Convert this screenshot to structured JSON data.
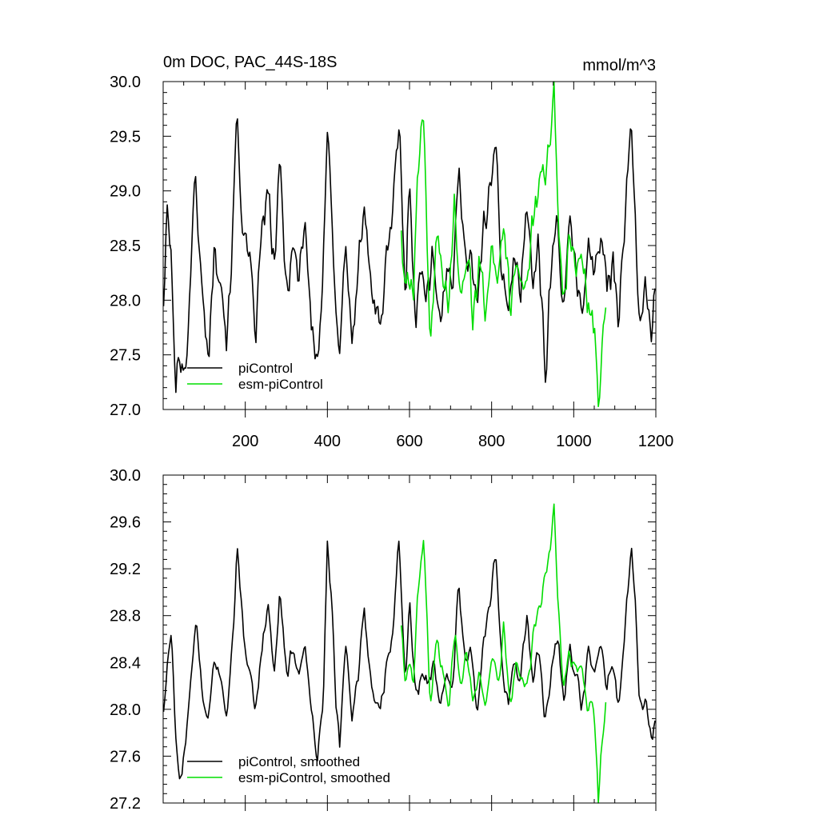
{
  "chart_data": [
    {
      "type": "line",
      "title": "0m DOC, PAC_44S-18S",
      "units": "mmol/m^3",
      "xlabel": "",
      "ylabel": "",
      "xlim": [
        0,
        1200
      ],
      "ylim": [
        27.0,
        30.0
      ],
      "x_ticks": [
        200,
        400,
        600,
        800,
        1000,
        1200
      ],
      "y_ticks": [
        27.0,
        27.5,
        28.0,
        28.5,
        29.0,
        29.5,
        30.0
      ],
      "y_tick_labels": [
        "27.0",
        "27.5",
        "28.0",
        "28.5",
        "29.0",
        "29.5",
        "30.0"
      ],
      "legend_position": "bottom-left",
      "series": [
        {
          "name": "piControl",
          "color": "#000000",
          "x_start": 1,
          "x_end": 1200,
          "points": [
            [
              1,
              28.0
            ],
            [
              10,
              28.8
            ],
            [
              20,
              28.4
            ],
            [
              30,
              27.1
            ],
            [
              40,
              27.6
            ],
            [
              55,
              27.3
            ],
            [
              70,
              28.6
            ],
            [
              80,
              29.1
            ],
            [
              95,
              28.0
            ],
            [
              110,
              27.5
            ],
            [
              125,
              28.5
            ],
            [
              140,
              28.3
            ],
            [
              155,
              27.6
            ],
            [
              170,
              28.7
            ],
            [
              180,
              29.7
            ],
            [
              195,
              28.6
            ],
            [
              210,
              28.3
            ],
            [
              225,
              27.7
            ],
            [
              240,
              28.6
            ],
            [
              255,
              29.0
            ],
            [
              270,
              28.3
            ],
            [
              285,
              29.2
            ],
            [
              300,
              28.1
            ],
            [
              315,
              28.5
            ],
            [
              330,
              28.2
            ],
            [
              345,
              28.8
            ],
            [
              360,
              27.8
            ],
            [
              375,
              27.4
            ],
            [
              390,
              28.2
            ],
            [
              400,
              29.5
            ],
            [
              410,
              29.0
            ],
            [
              420,
              28.0
            ],
            [
              430,
              27.5
            ],
            [
              445,
              28.6
            ],
            [
              460,
              27.5
            ],
            [
              475,
              28.3
            ],
            [
              490,
              28.9
            ],
            [
              500,
              28.3
            ],
            [
              515,
              28.0
            ],
            [
              530,
              27.8
            ],
            [
              545,
              28.4
            ],
            [
              560,
              28.8
            ],
            [
              575,
              29.6
            ],
            [
              590,
              28.0
            ],
            [
              600,
              29.2
            ],
            [
              615,
              27.8
            ],
            [
              630,
              28.3
            ],
            [
              645,
              28.1
            ],
            [
              660,
              28.4
            ],
            [
              675,
              27.8
            ],
            [
              690,
              28.3
            ],
            [
              705,
              28.0
            ],
            [
              720,
              29.4
            ],
            [
              735,
              28.3
            ],
            [
              750,
              28.5
            ],
            [
              765,
              27.9
            ],
            [
              780,
              28.6
            ],
            [
              795,
              29.0
            ],
            [
              810,
              29.6
            ],
            [
              825,
              28.2
            ],
            [
              840,
              27.8
            ],
            [
              855,
              28.4
            ],
            [
              870,
              28.1
            ],
            [
              885,
              28.9
            ],
            [
              900,
              28.2
            ],
            [
              915,
              28.5
            ],
            [
              930,
              27.3
            ],
            [
              945,
              28.3
            ],
            [
              960,
              28.7
            ],
            [
              975,
              28.0
            ],
            [
              990,
              28.6
            ],
            [
              1005,
              28.3
            ],
            [
              1020,
              27.9
            ],
            [
              1035,
              28.5
            ],
            [
              1050,
              28.2
            ],
            [
              1065,
              28.6
            ],
            [
              1080,
              28.1
            ],
            [
              1095,
              28.4
            ],
            [
              1110,
              27.9
            ],
            [
              1125,
              28.7
            ],
            [
              1140,
              29.6
            ],
            [
              1150,
              28.8
            ],
            [
              1160,
              27.8
            ],
            [
              1175,
              28.1
            ],
            [
              1190,
              27.6
            ],
            [
              1200,
              28.2
            ]
          ]
        },
        {
          "name": "esm-piControl",
          "color": "#00dd00",
          "x_start": 580,
          "x_end": 1080,
          "points": [
            [
              580,
              28.6
            ],
            [
              590,
              28.0
            ],
            [
              600,
              28.3
            ],
            [
              610,
              27.9
            ],
            [
              620,
              29.1
            ],
            [
              635,
              29.7
            ],
            [
              650,
              27.5
            ],
            [
              665,
              28.6
            ],
            [
              680,
              28.3
            ],
            [
              695,
              27.9
            ],
            [
              710,
              28.9
            ],
            [
              725,
              28.1
            ],
            [
              740,
              28.5
            ],
            [
              755,
              27.8
            ],
            [
              770,
              28.3
            ],
            [
              785,
              28.0
            ],
            [
              800,
              28.6
            ],
            [
              815,
              28.2
            ],
            [
              830,
              28.8
            ],
            [
              845,
              27.9
            ],
            [
              860,
              28.5
            ],
            [
              875,
              28.1
            ],
            [
              890,
              28.3
            ],
            [
              905,
              28.8
            ],
            [
              920,
              29.0
            ],
            [
              935,
              29.3
            ],
            [
              945,
              29.5
            ],
            [
              952,
              30.0
            ],
            [
              960,
              29.0
            ],
            [
              975,
              28.0
            ],
            [
              990,
              28.6
            ],
            [
              1005,
              28.2
            ],
            [
              1020,
              28.5
            ],
            [
              1035,
              27.9
            ],
            [
              1050,
              27.8
            ],
            [
              1060,
              27.0
            ],
            [
              1070,
              27.7
            ],
            [
              1080,
              28.2
            ]
          ]
        }
      ]
    },
    {
      "type": "line",
      "title": "",
      "xlabel": "",
      "ylabel": "",
      "xlim": [
        0,
        1200
      ],
      "ylim": [
        27.2,
        30.0
      ],
      "x_ticks": [
        200,
        400,
        600,
        800,
        1000,
        1200
      ],
      "y_ticks": [
        27.2,
        27.6,
        28.0,
        28.4,
        28.8,
        29.2,
        29.6,
        30.0
      ],
      "y_tick_labels": [
        "27.2",
        "27.6",
        "28.0",
        "28.4",
        "28.8",
        "29.2",
        "29.6",
        "30.0"
      ],
      "legend_position": "bottom-left",
      "series": [
        {
          "name": "piControl, smoothed",
          "color": "#000000",
          "x_start": 1,
          "x_end": 1200,
          "points": [
            [
              1,
              28.0
            ],
            [
              10,
              28.4
            ],
            [
              20,
              28.7
            ],
            [
              30,
              27.8
            ],
            [
              40,
              27.4
            ],
            [
              55,
              27.7
            ],
            [
              70,
              28.3
            ],
            [
              80,
              28.8
            ],
            [
              95,
              28.1
            ],
            [
              110,
              27.9
            ],
            [
              125,
              28.4
            ],
            [
              140,
              28.3
            ],
            [
              155,
              27.9
            ],
            [
              170,
              28.6
            ],
            [
              180,
              29.4
            ],
            [
              195,
              28.7
            ],
            [
              210,
              28.3
            ],
            [
              225,
              28.0
            ],
            [
              240,
              28.5
            ],
            [
              255,
              28.9
            ],
            [
              270,
              28.3
            ],
            [
              285,
              29.0
            ],
            [
              300,
              28.3
            ],
            [
              315,
              28.5
            ],
            [
              330,
              28.3
            ],
            [
              345,
              28.6
            ],
            [
              360,
              28.0
            ],
            [
              375,
              27.6
            ],
            [
              390,
              28.1
            ],
            [
              400,
              29.4
            ],
            [
              410,
              29.0
            ],
            [
              420,
              28.1
            ],
            [
              430,
              27.7
            ],
            [
              445,
              28.6
            ],
            [
              460,
              27.9
            ],
            [
              475,
              28.3
            ],
            [
              490,
              28.8
            ],
            [
              500,
              28.4
            ],
            [
              515,
              28.1
            ],
            [
              530,
              28.0
            ],
            [
              545,
              28.4
            ],
            [
              560,
              28.7
            ],
            [
              575,
              29.5
            ],
            [
              590,
              28.2
            ],
            [
              600,
              28.9
            ],
            [
              615,
              28.1
            ],
            [
              630,
              28.3
            ],
            [
              645,
              28.2
            ],
            [
              660,
              28.4
            ],
            [
              675,
              28.0
            ],
            [
              690,
              28.3
            ],
            [
              705,
              28.2
            ],
            [
              720,
              29.1
            ],
            [
              735,
              28.4
            ],
            [
              750,
              28.5
            ],
            [
              765,
              28.0
            ],
            [
              780,
              28.6
            ],
            [
              795,
              28.9
            ],
            [
              810,
              29.3
            ],
            [
              825,
              28.4
            ],
            [
              840,
              28.0
            ],
            [
              855,
              28.4
            ],
            [
              870,
              28.2
            ],
            [
              885,
              28.8
            ],
            [
              900,
              28.3
            ],
            [
              915,
              28.5
            ],
            [
              930,
              27.9
            ],
            [
              945,
              28.3
            ],
            [
              960,
              28.6
            ],
            [
              975,
              28.1
            ],
            [
              990,
              28.5
            ],
            [
              1005,
              28.3
            ],
            [
              1020,
              28.0
            ],
            [
              1035,
              28.5
            ],
            [
              1050,
              28.3
            ],
            [
              1065,
              28.6
            ],
            [
              1080,
              28.2
            ],
            [
              1095,
              28.4
            ],
            [
              1110,
              28.0
            ],
            [
              1125,
              28.7
            ],
            [
              1140,
              29.4
            ],
            [
              1150,
              28.9
            ],
            [
              1160,
              28.0
            ],
            [
              1175,
              28.1
            ],
            [
              1190,
              27.8
            ],
            [
              1200,
              27.9
            ]
          ]
        },
        {
          "name": "esm-piControl, smoothed",
          "color": "#00dd00",
          "x_start": 580,
          "x_end": 1080,
          "points": [
            [
              580,
              28.7
            ],
            [
              590,
              28.2
            ],
            [
              600,
              28.4
            ],
            [
              610,
              28.2
            ],
            [
              620,
              29.0
            ],
            [
              635,
              29.5
            ],
            [
              650,
              28.0
            ],
            [
              665,
              28.6
            ],
            [
              680,
              28.3
            ],
            [
              695,
              28.0
            ],
            [
              710,
              28.7
            ],
            [
              725,
              28.2
            ],
            [
              740,
              28.5
            ],
            [
              755,
              28.0
            ],
            [
              770,
              28.3
            ],
            [
              785,
              28.1
            ],
            [
              800,
              28.5
            ],
            [
              815,
              28.2
            ],
            [
              830,
              28.7
            ],
            [
              845,
              28.0
            ],
            [
              860,
              28.4
            ],
            [
              875,
              28.2
            ],
            [
              890,
              28.3
            ],
            [
              905,
              28.7
            ],
            [
              920,
              28.9
            ],
            [
              935,
              29.2
            ],
            [
              945,
              29.4
            ],
            [
              952,
              29.8
            ],
            [
              960,
              29.0
            ],
            [
              975,
              28.2
            ],
            [
              990,
              28.5
            ],
            [
              1005,
              28.3
            ],
            [
              1020,
              28.4
            ],
            [
              1035,
              28.0
            ],
            [
              1050,
              28.0
            ],
            [
              1060,
              27.2
            ],
            [
              1070,
              27.8
            ],
            [
              1080,
              28.1
            ]
          ]
        }
      ]
    }
  ]
}
